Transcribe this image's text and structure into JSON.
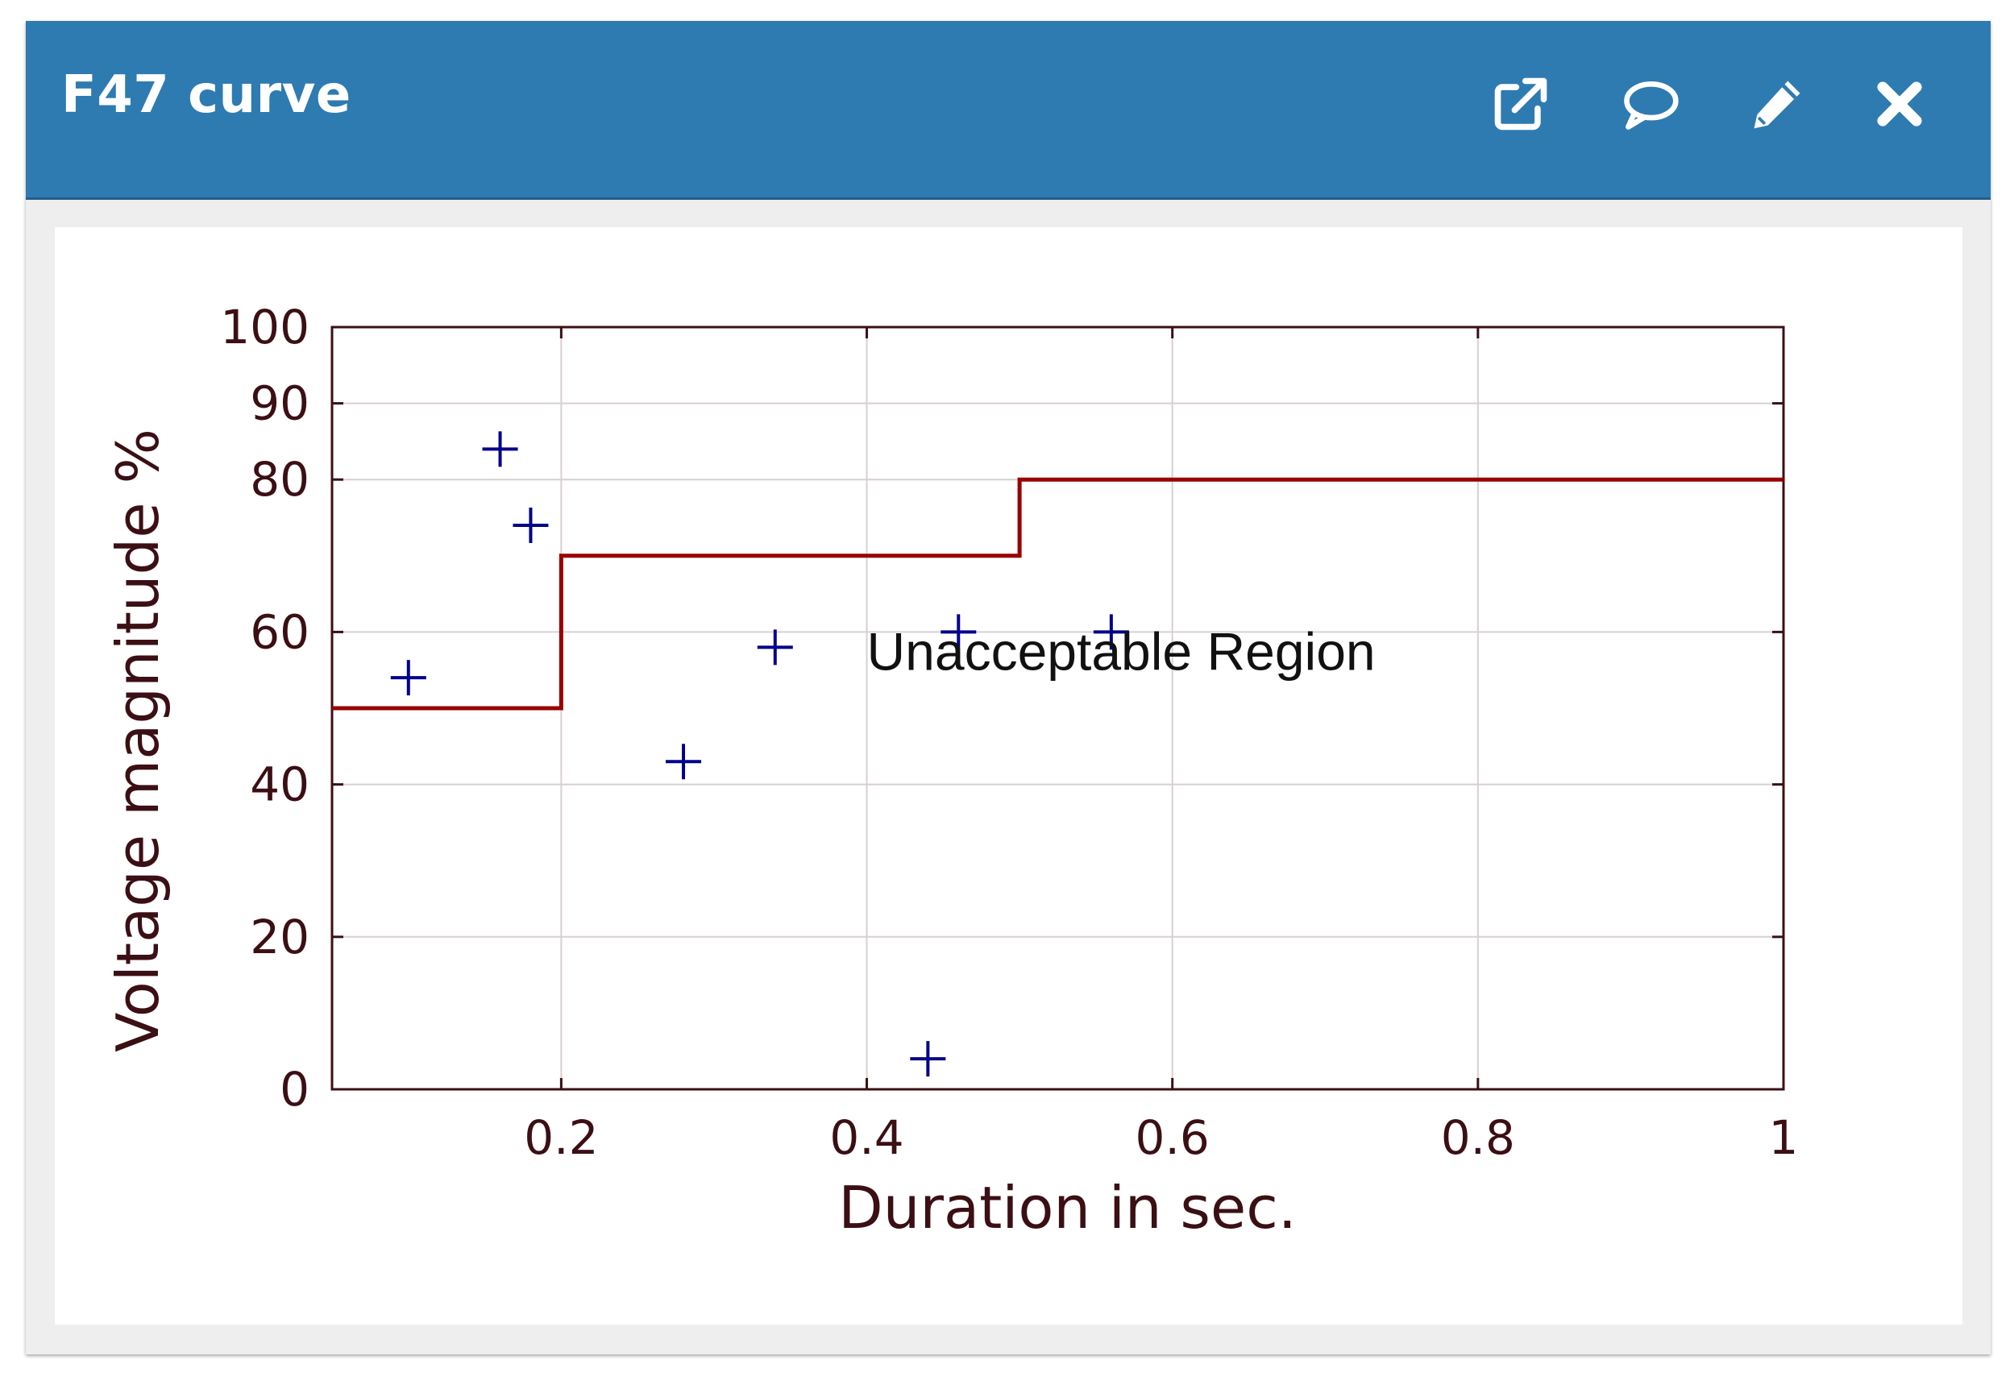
{
  "window": {
    "title": "F47 curve"
  },
  "toolbar": {
    "icons": [
      "external-link-icon",
      "comment-icon",
      "pencil-icon",
      "close-icon"
    ]
  },
  "chart_data": {
    "type": "scatter",
    "title": "",
    "xlabel": "Duration in sec.",
    "ylabel": "Voltage magnitude %",
    "xlim": [
      0.05,
      1
    ],
    "ylim": [
      0,
      100
    ],
    "x_ticks": [
      "0.2",
      "0.4",
      "0.6",
      "0.8",
      "1"
    ],
    "x_tick_values": [
      0.2,
      0.4,
      0.6,
      0.8,
      1
    ],
    "y_ticks": [
      "0",
      "20",
      "40",
      "60",
      "80",
      "90",
      "100"
    ],
    "y_tick_values": [
      0,
      20,
      40,
      60,
      80,
      90,
      100
    ],
    "grid": true,
    "series": [
      {
        "type": "line-step",
        "color": "#990000",
        "x": [
          0.05,
          0.2,
          0.2,
          0.5,
          0.5,
          1
        ],
        "y": [
          50,
          50,
          70,
          70,
          80,
          80
        ]
      },
      {
        "type": "scatter",
        "marker": "plus",
        "color": "#00008b",
        "x": [
          0.1,
          0.16,
          0.18,
          0.28,
          0.34,
          0.44,
          0.46,
          0.56
        ],
        "y": [
          54,
          84,
          74,
          43,
          58,
          4,
          60,
          60
        ]
      }
    ],
    "annotations": [
      {
        "text": "Unacceptable Region",
        "x": 0.4,
        "y": 55
      }
    ]
  }
}
